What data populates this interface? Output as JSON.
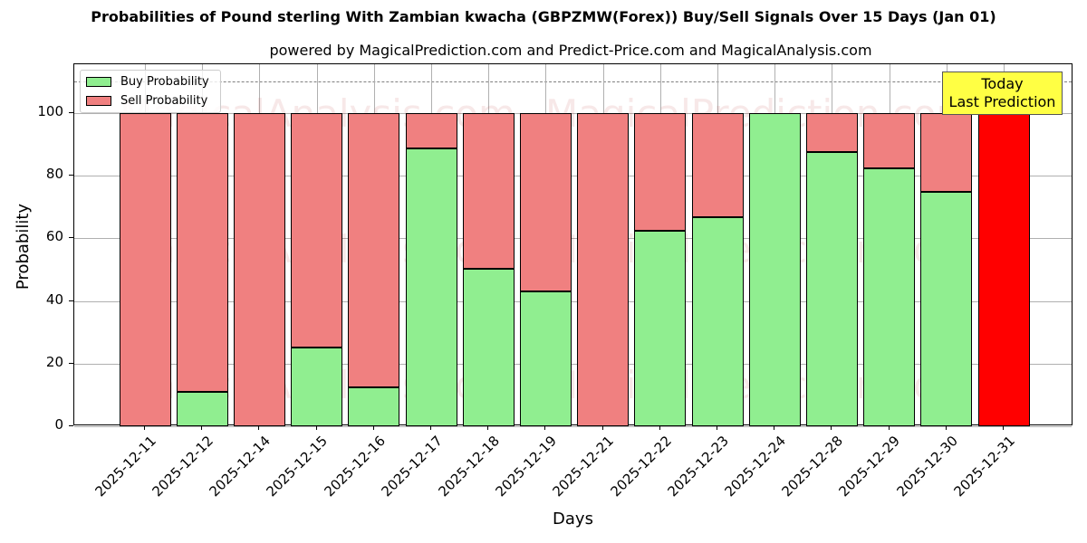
{
  "header": {
    "title": "Probabilities of Pound sterling With Zambian kwacha (GBPZMW(Forex)) Buy/Sell Signals Over 15 Days (Jan 01)",
    "subtitle": "powered by MagicalPrediction.com and Predict-Price.com and MagicalAnalysis.com"
  },
  "legend": {
    "buy_label": "Buy Probability",
    "sell_label": "Sell Probability"
  },
  "annotation": {
    "line1": "Today",
    "line2": "Last Prediction"
  },
  "watermarks": [
    "MagicalAnalysis.com",
    "MagicalPrediction.com"
  ],
  "colors": {
    "buy": "#90ee90",
    "sell": "#f08080",
    "today": "#ff0000",
    "annotation_bg": "#ffff44"
  },
  "chart_data": {
    "type": "bar",
    "stacked": true,
    "title": "Probabilities of Pound sterling With Zambian kwacha (GBPZMW(Forex)) Buy/Sell Signals Over 15 Days (Jan 01)",
    "subtitle": "powered by MagicalPrediction.com and Predict-Price.com and MagicalAnalysis.com",
    "xlabel": "Days",
    "ylabel": "Probability",
    "ylim": [
      0,
      115
    ],
    "yticks": [
      0,
      20,
      40,
      60,
      80,
      100
    ],
    "reference_line": 110,
    "grid": true,
    "legend_position": "upper left",
    "categories": [
      "2025-12-11",
      "2025-12-12",
      "2025-12-14",
      "2025-12-15",
      "2025-12-16",
      "2025-12-17",
      "2025-12-18",
      "2025-12-19",
      "2025-12-21",
      "2025-12-22",
      "2025-12-23",
      "2025-12-24",
      "2025-12-28",
      "2025-12-29",
      "2025-12-30",
      "2025-12-31"
    ],
    "series": [
      {
        "name": "Buy Probability",
        "values": [
          0,
          11,
          0,
          25,
          12.4,
          88.7,
          50.3,
          43.1,
          0,
          62.4,
          66.8,
          100,
          87.6,
          82.4,
          74.9,
          0
        ]
      },
      {
        "name": "Sell Probability",
        "values": [
          100,
          89,
          100,
          75,
          87.6,
          11.3,
          49.7,
          56.9,
          100,
          37.6,
          33.2,
          0,
          12.4,
          17.6,
          25.1,
          100
        ]
      }
    ],
    "annotations": [
      {
        "text": "Today\nLast Prediction",
        "x": "2025-12-31"
      }
    ]
  }
}
